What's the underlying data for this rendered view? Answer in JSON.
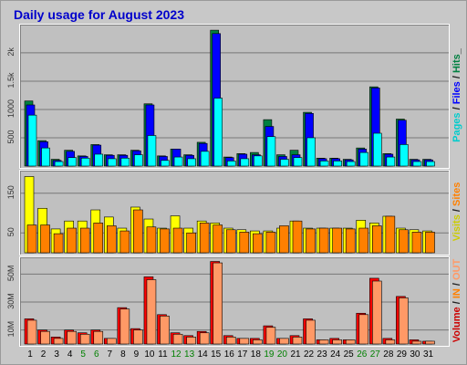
{
  "title": "Daily usage for August 2023",
  "colors": {
    "hits": "#008040",
    "files": "#0000ff",
    "pages": "#00ffff",
    "visits": "#ffff00",
    "sites": "#ff8000",
    "kbin": "#ff0000",
    "kbout": "#ff9966",
    "grid": "#777777"
  },
  "chart_data": [
    {
      "type": "bar",
      "title": "Daily usage for August 2023",
      "right_label_parts": [
        {
          "text": "Pages",
          "color": "#00cccc"
        },
        {
          "text": " / ",
          "color": "#222222"
        },
        {
          "text": "Files",
          "color": "#0000ff"
        },
        {
          "text": " / ",
          "color": "#222222"
        },
        {
          "text": "Hits",
          "color": "#008040"
        },
        {
          "text": "_",
          "color": "#222222"
        }
      ],
      "yticks": [
        "500",
        "1000",
        "1.5k",
        "2k"
      ],
      "ylim": [
        0,
        2450
      ],
      "grid": true,
      "categories": [
        "1",
        "2",
        "3",
        "4",
        "5",
        "6",
        "7",
        "8",
        "9",
        "10",
        "11",
        "12",
        "13",
        "14",
        "15",
        "16",
        "17",
        "18",
        "19",
        "20",
        "21",
        "22",
        "23",
        "24",
        "25",
        "26",
        "27",
        "28",
        "29",
        "30",
        "31"
      ],
      "series": [
        {
          "name": "Hits",
          "values": [
            1150,
            450,
            120,
            280,
            180,
            380,
            200,
            200,
            280,
            1100,
            180,
            300,
            200,
            420,
            2400,
            160,
            220,
            240,
            820,
            200,
            280,
            950,
            140,
            140,
            120,
            320,
            1400,
            220,
            830,
            120,
            120
          ]
        },
        {
          "name": "Files",
          "values": [
            1080,
            430,
            100,
            260,
            170,
            370,
            190,
            190,
            270,
            1080,
            170,
            300,
            190,
            400,
            2340,
            150,
            210,
            200,
            700,
            170,
            200,
            930,
            130,
            130,
            110,
            300,
            1380,
            210,
            810,
            110,
            110
          ]
        },
        {
          "name": "Pages",
          "values": [
            900,
            320,
            80,
            150,
            140,
            210,
            130,
            140,
            200,
            540,
            100,
            160,
            130,
            260,
            1200,
            90,
            130,
            180,
            520,
            120,
            150,
            500,
            90,
            90,
            80,
            240,
            580,
            160,
            380,
            80,
            80
          ]
        }
      ]
    },
    {
      "type": "bar",
      "right_label_parts": [
        {
          "text": "Visits",
          "color": "#cccc00"
        },
        {
          "text": " / ",
          "color": "#222222"
        },
        {
          "text": "Sites",
          "color": "#ff8000"
        }
      ],
      "yticks": [
        "50",
        "150"
      ],
      "ylim": [
        0,
        200
      ],
      "grid": true,
      "categories": [
        "1",
        "2",
        "3",
        "4",
        "5",
        "6",
        "7",
        "8",
        "9",
        "10",
        "11",
        "12",
        "13",
        "14",
        "15",
        "16",
        "17",
        "18",
        "19",
        "20",
        "21",
        "22",
        "23",
        "24",
        "25",
        "26",
        "27",
        "28",
        "29",
        "30",
        "31"
      ],
      "series": [
        {
          "name": "Visits",
          "values": [
            192,
            112,
            60,
            80,
            80,
            108,
            90,
            62,
            115,
            85,
            62,
            93,
            62,
            80,
            75,
            62,
            58,
            55,
            55,
            62,
            80,
            62,
            62,
            62,
            62,
            82,
            75,
            92,
            62,
            58,
            55
          ]
        },
        {
          "name": "Sites",
          "values": [
            70,
            70,
            48,
            62,
            62,
            75,
            68,
            55,
            108,
            65,
            60,
            62,
            50,
            75,
            70,
            58,
            52,
            48,
            52,
            68,
            80,
            60,
            62,
            62,
            60,
            62,
            68,
            92,
            58,
            52,
            52
          ]
        }
      ]
    },
    {
      "type": "bar",
      "right_label_parts": [
        {
          "text": "Volume",
          "color": "#cc0000"
        },
        {
          "text": " / ",
          "color": "#222222"
        },
        {
          "text": "IN",
          "color": "#ff8000"
        },
        {
          "text": " / ",
          "color": "#222222"
        },
        {
          "text": "OUT",
          "color": "#ff9966"
        }
      ],
      "yticks": [
        "10M",
        "30M",
        "50M"
      ],
      "ylim": [
        0,
        60
      ],
      "grid": true,
      "categories": [
        "1",
        "2",
        "3",
        "4",
        "5",
        "6",
        "7",
        "8",
        "9",
        "10",
        "11",
        "12",
        "13",
        "14",
        "15",
        "16",
        "17",
        "18",
        "19",
        "20",
        "21",
        "22",
        "23",
        "24",
        "25",
        "26",
        "27",
        "28",
        "29",
        "30",
        "31"
      ],
      "series": [
        {
          "name": "Volume",
          "values": [
            18,
            10,
            5,
            10,
            8,
            10,
            4,
            26,
            11,
            48,
            21,
            8,
            6,
            9,
            59,
            6,
            4,
            4,
            13,
            4,
            6,
            18,
            3,
            4,
            3,
            22,
            47,
            4,
            34,
            3,
            2
          ]
        },
        {
          "name": "OUT",
          "values": [
            17,
            9,
            4,
            9,
            7,
            9,
            4,
            25,
            10,
            46,
            20,
            7,
            5,
            8,
            58,
            5,
            4,
            3,
            12,
            4,
            5,
            17,
            3,
            3,
            3,
            21,
            45,
            3,
            33,
            2,
            2
          ]
        }
      ]
    }
  ]
}
